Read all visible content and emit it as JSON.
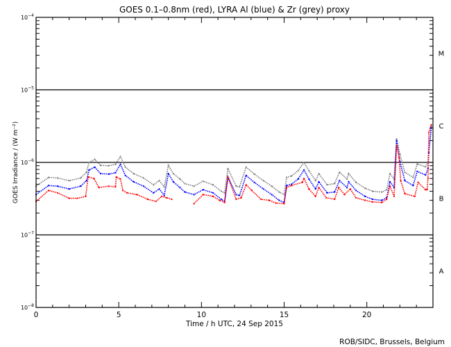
{
  "chart_data": {
    "type": "scatter",
    "title": "GOES 0.1–0.8nm (red), LYRA Al (blue) & Zr (grey) proxy",
    "xlabel": "Time / h UTC, 24 Sep 2015",
    "ylabel": "GOES Irradiance / (W m⁻²)",
    "credit": "ROB/SIDC, Brussels, Belgium",
    "xlim": [
      0,
      24
    ],
    "ylim": [
      1e-08,
      0.0001
    ],
    "yscale": "log",
    "x_ticks": [
      {
        "value": 0,
        "label": "0"
      },
      {
        "value": 5,
        "label": "5"
      },
      {
        "value": 10,
        "label": "10"
      },
      {
        "value": 15,
        "label": "15"
      },
      {
        "value": 20,
        "label": "20"
      }
    ],
    "y_ticks": [
      {
        "value": 0.0001,
        "base": "10",
        "exp": "−4"
      },
      {
        "value": 1e-05,
        "base": "10",
        "exp": "−5"
      },
      {
        "value": 1e-06,
        "base": "10",
        "exp": "−6"
      },
      {
        "value": 1e-07,
        "base": "10",
        "exp": "−7"
      },
      {
        "value": 1e-08,
        "base": "10",
        "exp": "−8"
      }
    ],
    "reference_lines": [
      1e-05,
      1e-06,
      1e-07
    ],
    "flare_classes": [
      {
        "label": "M",
        "value": 3.2e-05
      },
      {
        "label": "C",
        "value": 3.2e-06
      },
      {
        "label": "B",
        "value": 3.2e-07
      },
      {
        "label": "A",
        "value": 3.2e-08
      }
    ],
    "series": [
      {
        "name": "GOES 0.1-0.8nm",
        "color": "#ff0000",
        "x": [
          0,
          0.76,
          1.3,
          2.0,
          2.5,
          3.0,
          3.15,
          3.5,
          3.8,
          4.4,
          4.8,
          4.85,
          5.1,
          5.25,
          5.5,
          6.1,
          6.75,
          7.25,
          7.6,
          7.9,
          8.2,
          null,
          9.55,
          10.1,
          10.7,
          11.1,
          11.4,
          11.6,
          12.1,
          12.4,
          12.7,
          13.05,
          13.6,
          14.1,
          14.5,
          15.0,
          15.15,
          15.45,
          16.1,
          16.2,
          16.5,
          16.9,
          17.1,
          17.55,
          18.05,
          18.3,
          18.65,
          19.0,
          19.35,
          19.9,
          20.35,
          20.9,
          21.2,
          21.4,
          21.65,
          21.8,
          21.95,
          22.05,
          22.3,
          22.9,
          23.1,
          23.55,
          23.65,
          23.7,
          23.75,
          23.9
        ],
        "y": [
          2.9e-07,
          4.1e-07,
          3.8e-07,
          3.2e-07,
          3.2e-07,
          3.4e-07,
          6.3e-07,
          6e-07,
          4.5e-07,
          4.7e-07,
          4.6e-07,
          6.3e-07,
          5.9e-07,
          4.1e-07,
          3.8e-07,
          3.6e-07,
          3.1e-07,
          2.9e-07,
          3.4e-07,
          3.25e-07,
          3.1e-07,
          null,
          2.7e-07,
          3.6e-07,
          3.4e-07,
          3e-07,
          2.8e-07,
          6.3e-07,
          3.1e-07,
          3.25e-07,
          4.9e-07,
          4.1e-07,
          3.1e-07,
          3e-07,
          2.75e-07,
          2.7e-07,
          4.5e-07,
          4.8e-07,
          5.3e-07,
          6e-07,
          4.3e-07,
          3.4e-07,
          4.5e-07,
          3.25e-07,
          3.1e-07,
          4.5e-07,
          3.6e-07,
          4.3e-07,
          3.25e-07,
          3e-07,
          2.85e-07,
          2.8e-07,
          3.1e-07,
          4.7e-07,
          3.4e-07,
          1.7e-06,
          1.17e-06,
          5.6e-07,
          3.7e-07,
          3.4e-07,
          5.3e-07,
          4.2e-07,
          4.2e-07,
          6e-07,
          2.6e-06,
          3.3e-06
        ]
      },
      {
        "name": "LYRA Al proxy",
        "color": "#0000ff",
        "x": [
          0,
          0.76,
          1.3,
          2.0,
          2.7,
          3.05,
          3.2,
          3.55,
          3.9,
          4.4,
          4.8,
          5.1,
          5.4,
          5.9,
          6.5,
          7.1,
          7.45,
          7.75,
          8.0,
          8.3,
          8.7,
          9.0,
          9.55,
          10.1,
          10.7,
          11.2,
          11.4,
          11.6,
          12.1,
          12.3,
          12.7,
          13.2,
          13.75,
          14.25,
          14.7,
          15.0,
          15.15,
          15.45,
          15.85,
          16.2,
          16.5,
          16.9,
          17.1,
          17.6,
          18.05,
          18.35,
          18.8,
          18.9,
          19.35,
          19.9,
          20.35,
          20.9,
          21.2,
          21.4,
          21.65,
          21.8,
          22.0,
          22.3,
          22.8,
          23.05,
          23.55,
          23.7,
          23.75,
          23.9
        ],
        "y": [
          3.6e-07,
          4.8e-07,
          4.7e-07,
          4.3e-07,
          4.7e-07,
          5.6e-07,
          7.85e-07,
          8.6e-07,
          7e-07,
          6.9e-07,
          7.2e-07,
          9.4e-07,
          6.6e-07,
          5.4e-07,
          4.7e-07,
          3.8e-07,
          4.3e-07,
          3.5e-07,
          7e-07,
          5.4e-07,
          4.5e-07,
          3.9e-07,
          3.6e-07,
          4.2e-07,
          3.8e-07,
          3.1e-07,
          2.9e-07,
          6.3e-07,
          3.6e-07,
          3.5e-07,
          6.6e-07,
          5.3e-07,
          4.3e-07,
          3.6e-07,
          3e-07,
          2.8e-07,
          4.8e-07,
          5e-07,
          5.9e-07,
          7.85e-07,
          5.9e-07,
          4.3e-07,
          5.4e-07,
          3.8e-07,
          3.9e-07,
          5.6e-07,
          4.5e-07,
          5.4e-07,
          4.1e-07,
          3.4e-07,
          3.1e-07,
          3e-07,
          3.25e-07,
          5.4e-07,
          4.5e-07,
          2e-06,
          1.02e-06,
          5.6e-07,
          4.8e-07,
          7.5e-07,
          6.7e-07,
          8.2e-07,
          1.36e-06,
          3e-06
        ]
      },
      {
        "name": "LYRA Zr proxy",
        "color": "#808080",
        "x": [
          0,
          0.76,
          1.3,
          2.0,
          2.7,
          3.05,
          3.2,
          3.55,
          3.9,
          4.4,
          4.8,
          5.1,
          5.4,
          5.9,
          6.5,
          7.1,
          7.45,
          7.75,
          8.0,
          8.3,
          8.7,
          9.0,
          9.55,
          10.1,
          10.7,
          11.2,
          11.4,
          11.6,
          12.1,
          12.3,
          12.7,
          13.2,
          13.75,
          14.25,
          14.7,
          15.0,
          15.15,
          15.45,
          15.85,
          16.2,
          16.5,
          16.9,
          17.1,
          17.6,
          18.05,
          18.35,
          18.8,
          18.9,
          19.35,
          19.9,
          20.35,
          20.9,
          21.2,
          21.4,
          21.65,
          21.8,
          22.0,
          22.3,
          22.8,
          23.05,
          23.55,
          23.7,
          23.75,
          23.9
        ],
        "y": [
          4.7e-07,
          6.2e-07,
          6.1e-07,
          5.6e-07,
          6.1e-07,
          7.3e-07,
          1e-06,
          1.1e-06,
          9.1e-07,
          9e-07,
          9.4e-07,
          1.2e-06,
          8.6e-07,
          7e-07,
          6.1e-07,
          4.9e-07,
          5.6e-07,
          4.6e-07,
          9.1e-07,
          7e-07,
          5.9e-07,
          5.1e-07,
          4.7e-07,
          5.5e-07,
          4.9e-07,
          4e-07,
          3.8e-07,
          8.2e-07,
          4.7e-07,
          4.6e-07,
          8.6e-07,
          6.9e-07,
          5.6e-07,
          4.7e-07,
          3.9e-07,
          3.6e-07,
          6.2e-07,
          6.5e-07,
          7.7e-07,
          1e-06,
          7.7e-07,
          5.6e-07,
          7e-07,
          4.9e-07,
          5.1e-07,
          7.3e-07,
          5.9e-07,
          7e-07,
          5.3e-07,
          4.4e-07,
          4e-07,
          3.9e-07,
          4.2e-07,
          7e-07,
          5.9e-07,
          2.1e-06,
          1.3e-06,
          7.3e-07,
          6.2e-07,
          9.5e-07,
          8.7e-07,
          1e-06,
          1.5e-06,
          3.2e-06
        ]
      }
    ]
  }
}
